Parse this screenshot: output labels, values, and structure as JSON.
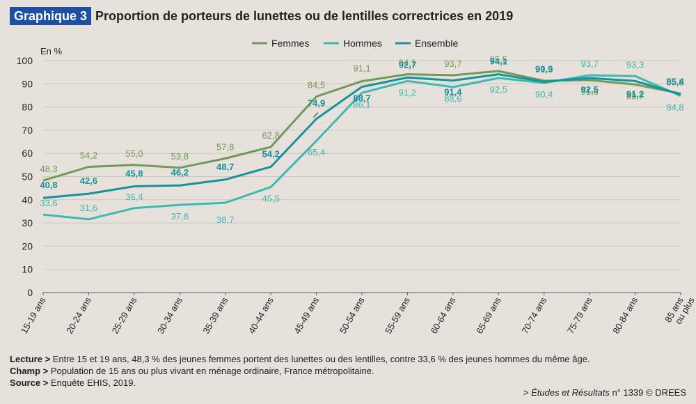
{
  "header": {
    "badge": "Graphique 3",
    "title": "Proportion de porteurs de lunettes ou de lentilles correctrices en 2019"
  },
  "chart_data": {
    "type": "line",
    "title": "Proportion de porteurs de lunettes ou de lentilles correctrices en 2019",
    "ylabel": "En %",
    "ylim": [
      0,
      100
    ],
    "yticks": [
      0,
      10,
      20,
      30,
      40,
      50,
      60,
      70,
      80,
      90,
      100
    ],
    "grid": true,
    "legend_position": "top-center",
    "categories": [
      "15-19 ans",
      "20-24 ans",
      "25-29 ans",
      "30-34 ans",
      "35-39 ans",
      "40-44 ans",
      "45-49 ans",
      "50-54 ans",
      "55-59 ans",
      "60-64 ans",
      "65-69 ans",
      "70-74 ans",
      "75-79 ans",
      "80-84 ans",
      "85 ans ou plus"
    ],
    "series": [
      {
        "name": "Femmes",
        "color": "#72985a",
        "values": [
          48.3,
          54.2,
          55.0,
          53.8,
          57.8,
          62.8,
          84.5,
          91.1,
          94.1,
          93.7,
          95.5,
          91.3,
          91.6,
          89.7,
          85.8
        ],
        "labels": [
          "48,3",
          "54,2",
          "55,0",
          "53,8",
          "57,8",
          "62,8",
          "84,5",
          "91,1",
          "94,1",
          "93,7",
          "95,5",
          "91,3",
          "91,6",
          "89,7",
          "85,8"
        ]
      },
      {
        "name": "Hommes",
        "color": "#3fb8b0",
        "values": [
          33.6,
          31.6,
          36.4,
          37.8,
          38.7,
          45.5,
          65.4,
          86.1,
          91.2,
          88.6,
          92.5,
          90.4,
          93.7,
          93.3,
          84.8
        ],
        "labels": [
          "33,6",
          "31,6",
          "36,4",
          "37,8",
          "38,7",
          "45,5",
          "65,4",
          "86,1",
          "91,2",
          "88,6",
          "92,5",
          "90,4",
          "93,7",
          "93,3",
          "84,8"
        ]
      },
      {
        "name": "Ensemble",
        "color": "#17919b",
        "values": [
          40.8,
          42.6,
          45.8,
          46.2,
          48.7,
          54.2,
          74.9,
          88.7,
          92.7,
          91.4,
          94.1,
          90.9,
          92.5,
          91.2,
          85.4
        ],
        "labels": [
          "40,8",
          "42,6",
          "45,8",
          "46,2",
          "48,7",
          "54,2",
          "74,9",
          "88,7",
          "92,7",
          "91,4",
          "94,1",
          "90,9",
          "92,5",
          "91,2",
          "85,4"
        ]
      }
    ]
  },
  "notes": {
    "lecture_label": "Lecture >",
    "lecture_text": " Entre 15 et 19 ans, 48,3 % des jeunes femmes portent des lunettes ou des lentilles, contre 33,6 % des jeunes hommes du même âge.",
    "champ_label": "Champ >",
    "champ_text": " Population de 15 ans ou plus vivant en ménage ordinaire, France métropolitaine.",
    "source_label": "Source >",
    "source_text": " Enquête EHIS, 2019."
  },
  "credit": {
    "prefix": "> ",
    "publication": "Études et Résultats",
    "suffix": " n° 1339 © DREES"
  }
}
